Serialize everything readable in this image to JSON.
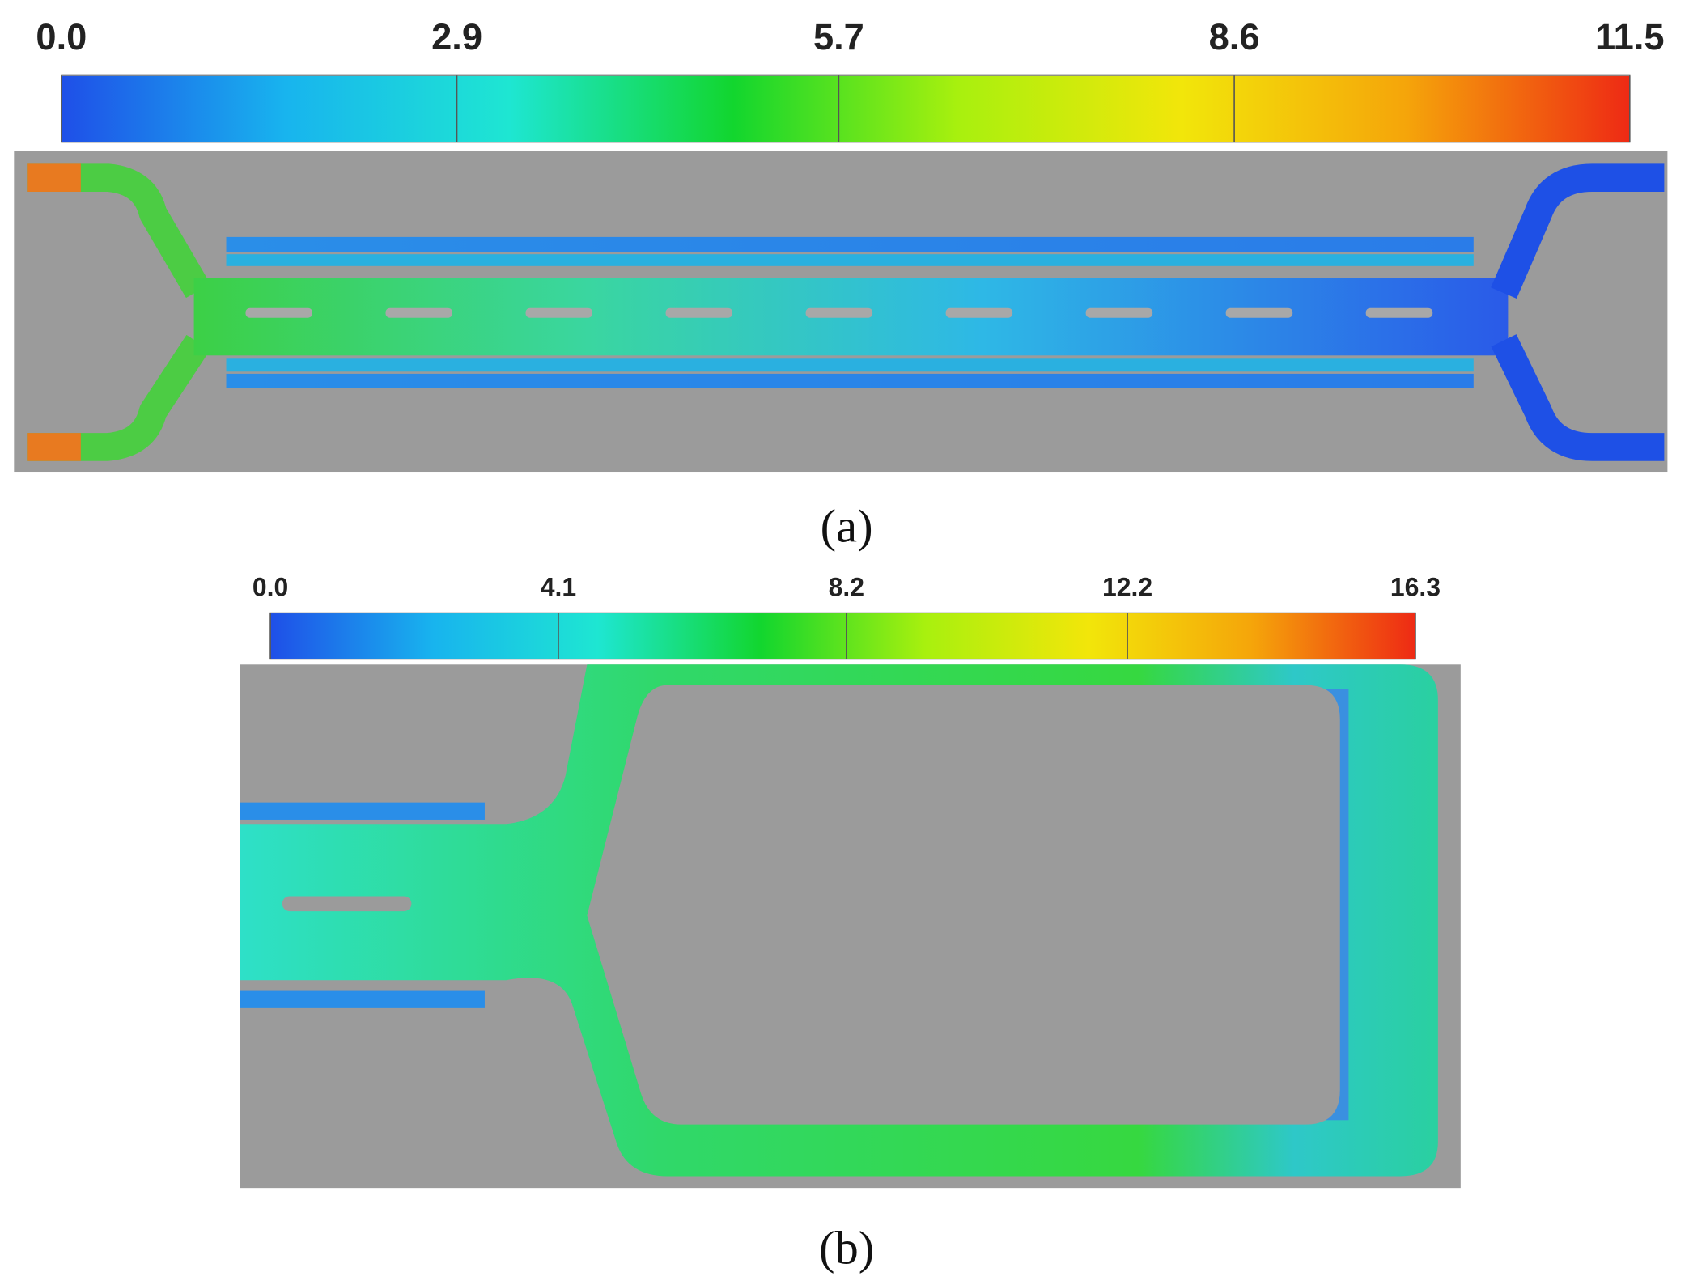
{
  "panels": [
    {
      "label": "(a)",
      "colorbar": {
        "range": [
          0,
          11.5
        ],
        "ticks": [
          {
            "value": 0,
            "label": "0.0"
          },
          2.9,
          5.7,
          8.6,
          11.5
        ],
        "colormap": [
          "#1f4fe8",
          "#18b4ee",
          "#1ee6d2",
          "#12d62e",
          "#a8f00e",
          "#f2e60a",
          "#f5a50a",
          "#ee2a14"
        ]
      }
    },
    {
      "label": "(b)",
      "colorbar": {
        "range": [
          0,
          16.3
        ],
        "ticks": [
          {
            "value": 0,
            "label": "0.0"
          },
          4.1,
          8.2,
          12.2,
          16.3
        ],
        "colormap": [
          "#1f4fe8",
          "#18b4ee",
          "#1ee6d2",
          "#12d62e",
          "#a8f00e",
          "#f2e60a",
          "#f5a50a",
          "#ee2a14"
        ]
      }
    }
  ]
}
